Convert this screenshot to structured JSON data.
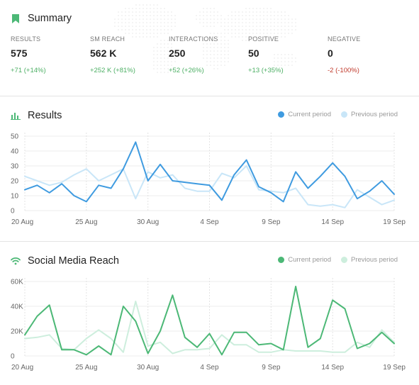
{
  "summary": {
    "title": "Summary",
    "metrics": [
      {
        "label": "RESULTS",
        "value": "575",
        "change": "+71 (+14%)",
        "trend": "pos"
      },
      {
        "label": "SM REACH",
        "value": "562 K",
        "change": "+252 K (+81%)",
        "trend": "pos"
      },
      {
        "label": "INTERACTIONS",
        "value": "250",
        "change": "+52 (+26%)",
        "trend": "pos"
      },
      {
        "label": "POSITIVE",
        "value": "50",
        "change": "+13 (+35%)",
        "trend": "pos"
      },
      {
        "label": "NEGATIVE",
        "value": "0",
        "change": "-2 (-100%)",
        "trend": "neg"
      }
    ]
  },
  "results_section": {
    "title": "Results",
    "legend_current": "Current period",
    "legend_previous": "Previous period"
  },
  "reach_section": {
    "title": "Social Media Reach",
    "legend_current": "Current period",
    "legend_previous": "Previous period"
  },
  "colors": {
    "results_current": "#3f9be0",
    "results_previous": "#c9e6f8",
    "reach_current": "#4cb876",
    "reach_previous": "#cdeedd",
    "summary_icon": "#4cb876"
  },
  "icons": {
    "summary": "bookmark-icon",
    "results": "bar-chart-icon",
    "reach": "wifi-icon"
  },
  "chart_data": [
    {
      "type": "line",
      "title": "Results",
      "x_tick_labels": [
        "20 Aug",
        "25 Aug",
        "30 Aug",
        "4 Sep",
        "9 Sep",
        "14 Sep",
        "19 Sep"
      ],
      "y_tick_labels": [
        "0",
        "10",
        "20",
        "30",
        "40",
        "50"
      ],
      "ylim": [
        0,
        50
      ],
      "grid": true,
      "legend_position": "top-right",
      "series": [
        {
          "name": "Current period",
          "values": [
            14,
            17,
            12,
            18,
            10,
            6,
            17,
            15,
            28,
            46,
            20,
            31,
            20,
            19,
            18,
            17,
            7,
            24,
            34,
            16,
            12,
            6,
            26,
            15,
            23,
            32,
            23,
            8,
            13,
            20,
            11
          ]
        },
        {
          "name": "Previous period",
          "values": [
            23,
            20,
            17,
            19,
            24,
            28,
            20,
            24,
            28,
            8,
            26,
            22,
            24,
            15,
            13,
            13,
            25,
            22,
            30,
            14,
            13,
            12,
            15,
            4,
            3,
            4,
            2,
            14,
            9,
            4,
            7
          ]
        }
      ]
    },
    {
      "type": "line",
      "title": "Social Media Reach",
      "x_tick_labels": [
        "20 Aug",
        "25 Aug",
        "30 Aug",
        "4 Sep",
        "9 Sep",
        "14 Sep",
        "19 Sep"
      ],
      "y_tick_labels": [
        "0",
        "20K",
        "40K",
        "60K"
      ],
      "ylim": [
        0,
        60000
      ],
      "grid": true,
      "legend_position": "top-right",
      "series": [
        {
          "name": "Current period",
          "values": [
            17000,
            32000,
            41000,
            5000,
            5000,
            1000,
            8000,
            1000,
            40000,
            28000,
            2000,
            20000,
            49000,
            15000,
            7000,
            18000,
            1000,
            19000,
            19000,
            9000,
            10000,
            5000,
            56000,
            7000,
            14000,
            45000,
            38000,
            6000,
            10000,
            19000,
            10000
          ]
        },
        {
          "name": "Previous period",
          "values": [
            14000,
            15000,
            17000,
            6000,
            5000,
            14000,
            21000,
            14000,
            3000,
            44000,
            8000,
            11000,
            2000,
            5000,
            5000,
            6000,
            17000,
            9000,
            9000,
            3000,
            3000,
            5000,
            4000,
            4000,
            4000,
            3000,
            3000,
            11000,
            7000,
            21000,
            11000
          ]
        }
      ]
    }
  ]
}
